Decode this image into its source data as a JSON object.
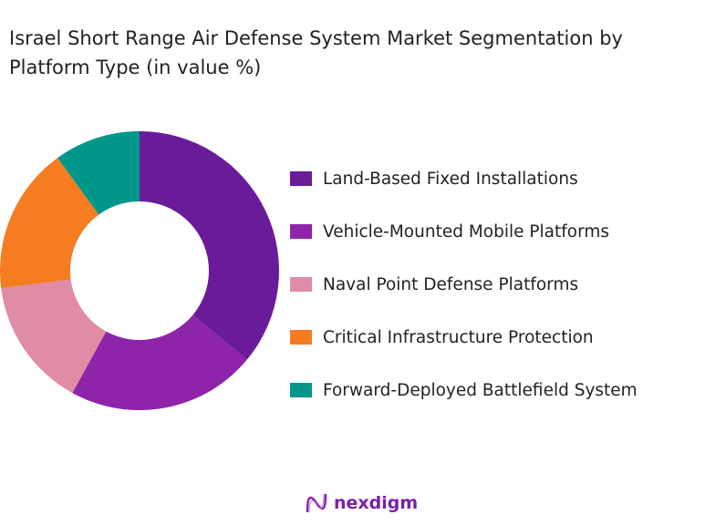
{
  "title": "Israel Short Range Air Defense System Market Segmentation by Platform Type (in value %)",
  "chart_data": {
    "type": "pie",
    "donut": true,
    "title": "Israel Short Range Air Defense System Market Segmentation by Platform Type (in value %)",
    "categories": [
      "Land-Based Fixed Installations",
      "Vehicle-Mounted Mobile Platforms",
      "Naval Point Defense Platforms",
      "Critical Infrastructure Protection",
      "Forward-Deployed Battlefield System"
    ],
    "values": [
      36,
      22,
      15,
      17,
      10
    ],
    "colors": [
      "#6a1b9a",
      "#8e24aa",
      "#e08ca4",
      "#f57c20",
      "#00968a"
    ],
    "legend_position": "right"
  },
  "logo": {
    "text": "nexdigm"
  }
}
